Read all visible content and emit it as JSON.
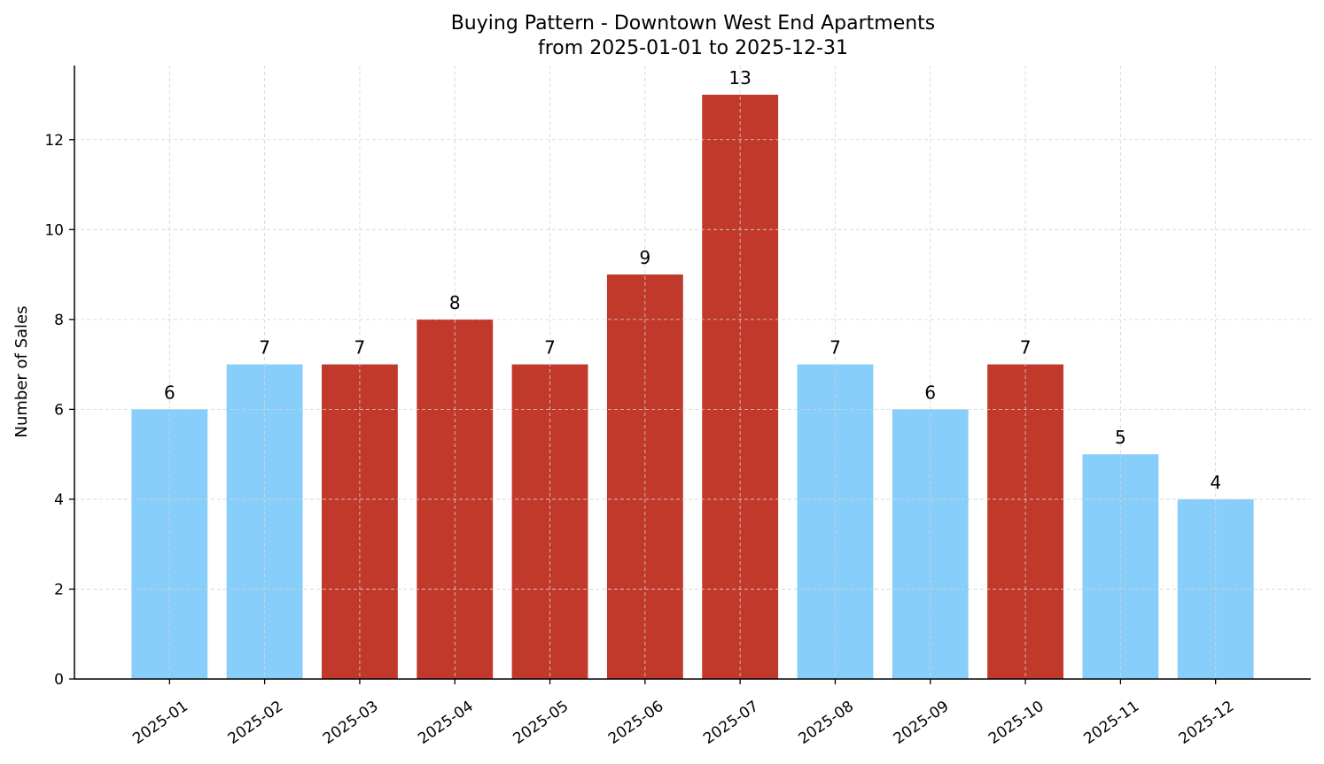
{
  "chart_data": {
    "type": "bar",
    "title": "Buying Pattern - Downtown West End Apartments",
    "subtitle": "from 2025-01-01 to 2025-12-31",
    "xlabel": "",
    "ylabel": "Number of Sales",
    "categories": [
      "2025-01",
      "2025-02",
      "2025-03",
      "2025-04",
      "2025-05",
      "2025-06",
      "2025-07",
      "2025-08",
      "2025-09",
      "2025-10",
      "2025-11",
      "2025-12"
    ],
    "values": [
      6,
      7,
      7,
      8,
      7,
      9,
      13,
      7,
      6,
      7,
      5,
      4
    ],
    "bar_colors": [
      "#87CEFA",
      "#87CEFA",
      "#C0392B",
      "#C0392B",
      "#C0392B",
      "#C0392B",
      "#C0392B",
      "#87CEFA",
      "#87CEFA",
      "#C0392B",
      "#87CEFA",
      "#87CEFA"
    ],
    "ylim": [
      0,
      13.65
    ],
    "xlim": [
      -1,
      12
    ],
    "yticks": [
      0,
      2,
      4,
      6,
      8,
      10,
      12
    ],
    "grid": true,
    "grid_color": "#d3d3d3",
    "data_labels": true,
    "xtick_rotation": 35
  }
}
